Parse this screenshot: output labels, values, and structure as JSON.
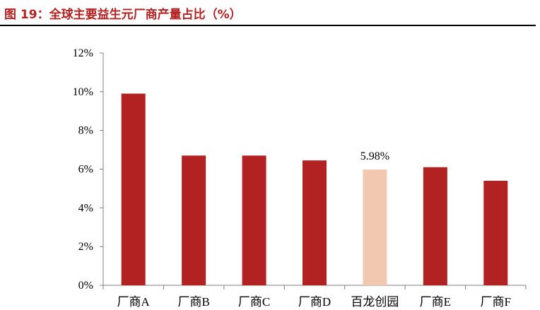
{
  "page": {
    "title": "图 19：全球主要益生元厂商产量占比（%）"
  },
  "chart_data": {
    "type": "bar",
    "categories": [
      "厂商A",
      "厂商B",
      "厂商C",
      "厂商D",
      "百龙创园",
      "厂商E",
      "厂商F"
    ],
    "values": [
      9.9,
      6.7,
      6.7,
      6.45,
      5.98,
      6.1,
      5.4
    ],
    "data_labels": [
      "",
      "",
      "",
      "",
      "5.98%",
      "",
      ""
    ],
    "ylim": [
      0,
      12
    ],
    "yticks": [
      0,
      2,
      4,
      6,
      8,
      10,
      12
    ],
    "ytick_labels": [
      "0%",
      "2%",
      "4%",
      "6%",
      "8%",
      "10%",
      "12%"
    ],
    "grid": false,
    "legend": "none",
    "colors": {
      "bar": "#b22222",
      "highlight": "#f2c9b0",
      "axis": "#808080"
    },
    "highlight_index": 4
  }
}
